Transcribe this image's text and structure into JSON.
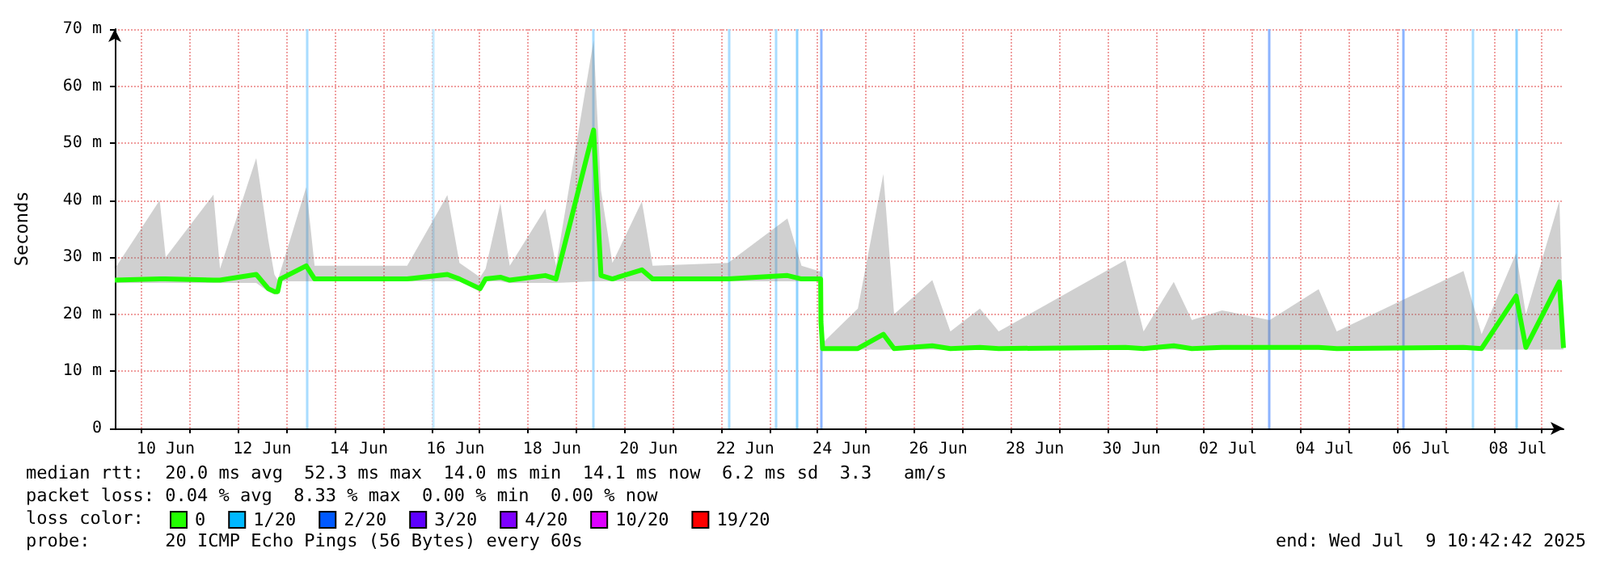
{
  "chart_data": {
    "type": "line",
    "ylabel": "Seconds",
    "legend_title": "loss color:",
    "legend": "bottom",
    "grid": true,
    "marker": "none",
    "line_style": "solid",
    "xlim": [
      "2025-06-09T10:42",
      "2025-07-09T10:42"
    ],
    "xticks": [
      {
        "value": "2025-06-10T12:00",
        "label": "10 Jun"
      },
      {
        "value": "2025-06-12T12:00",
        "label": "12 Jun"
      },
      {
        "value": "2025-06-14T12:00",
        "label": "14 Jun"
      },
      {
        "value": "2025-06-16T12:00",
        "label": "16 Jun"
      },
      {
        "value": "2025-06-18T12:00",
        "label": "18 Jun"
      },
      {
        "value": "2025-06-20T12:00",
        "label": "20 Jun"
      },
      {
        "value": "2025-06-22T12:00",
        "label": "22 Jun"
      },
      {
        "value": "2025-06-24T12:00",
        "label": "24 Jun"
      },
      {
        "value": "2025-06-26T12:00",
        "label": "26 Jun"
      },
      {
        "value": "2025-06-28T12:00",
        "label": "28 Jun"
      },
      {
        "value": "2025-06-30T12:00",
        "label": "30 Jun"
      },
      {
        "value": "2025-07-02T12:00",
        "label": "02 Jul"
      },
      {
        "value": "2025-07-04T12:00",
        "label": "04 Jul"
      },
      {
        "value": "2025-07-06T12:00",
        "label": "06 Jul"
      },
      {
        "value": "2025-07-08T12:00",
        "label": "08 Jul"
      },
      {
        "value": "2025-06-10",
        "label": null
      },
      {
        "value": "2025-06-11",
        "label": null
      },
      {
        "value": "2025-06-12",
        "label": null
      },
      {
        "value": "2025-06-13",
        "label": null
      },
      {
        "value": "2025-06-14",
        "label": null
      },
      {
        "value": "2025-06-15",
        "label": null
      },
      {
        "value": "2025-06-16",
        "label": null
      },
      {
        "value": "2025-06-17",
        "label": null
      },
      {
        "value": "2025-06-18",
        "label": null
      },
      {
        "value": "2025-06-19",
        "label": null
      },
      {
        "value": "2025-06-20",
        "label": null
      },
      {
        "value": "2025-06-21",
        "label": null
      },
      {
        "value": "2025-06-22",
        "label": null
      },
      {
        "value": "2025-06-23",
        "label": null
      },
      {
        "value": "2025-06-24",
        "label": null
      },
      {
        "value": "2025-06-25",
        "label": null
      },
      {
        "value": "2025-06-26",
        "label": null
      },
      {
        "value": "2025-06-27",
        "label": null
      },
      {
        "value": "2025-06-28",
        "label": null
      },
      {
        "value": "2025-06-29",
        "label": null
      },
      {
        "value": "2025-06-30",
        "label": null
      },
      {
        "value": "2025-07-01",
        "label": null
      },
      {
        "value": "2025-07-02",
        "label": null
      },
      {
        "value": "2025-07-03",
        "label": null
      },
      {
        "value": "2025-07-04",
        "label": null
      },
      {
        "value": "2025-07-05",
        "label": null
      },
      {
        "value": "2025-07-06",
        "label": null
      },
      {
        "value": "2025-07-07",
        "label": null
      },
      {
        "value": "2025-07-08",
        "label": null
      },
      {
        "value": "2025-07-09",
        "label": null
      }
    ],
    "ylim": [
      0,
      70
    ],
    "yticks": [
      0,
      {
        "value": 10,
        "label": "10 m"
      },
      {
        "value": 20,
        "label": "20 m"
      },
      {
        "value": 30,
        "label": "30 m"
      },
      {
        "value": 40,
        "label": "40 m"
      },
      {
        "value": 50,
        "label": "50 m"
      },
      {
        "value": 60,
        "label": "60 m"
      },
      {
        "value": 70,
        "label": "70 m"
      }
    ],
    "series": [
      {
        "name": "0",
        "color": "#22ff00",
        "x": [
          "2025-06-09T10:42",
          "2025-06-10T09:00",
          "2025-06-10T12:00",
          "2025-06-11T11:45",
          "2025-06-11T15:00",
          "2025-06-12T09:00",
          "2025-06-12T15:00",
          "2025-06-12T18:00",
          "2025-06-12T19:40",
          "2025-06-12T21:00",
          "2025-06-13T09:50",
          "2025-06-13T14:00",
          "2025-06-15T12:00",
          "2025-06-16T08:00",
          "2025-06-16T14:00",
          "2025-06-17T00:15",
          "2025-06-17T03:00",
          "2025-06-17T10:20",
          "2025-06-17T15:00",
          "2025-06-18T08:40",
          "2025-06-18T14:00",
          "2025-06-19T08:40",
          "2025-06-19T12:20",
          "2025-06-19T18:00",
          "2025-06-20T08:40",
          "2025-06-20T14:00",
          "2025-06-22T03:30",
          "2025-06-23T09:00",
          "2025-06-23T16:00",
          "2025-06-24T01:30",
          "2025-06-24T01:40",
          "2025-06-24T02:30",
          "2025-06-24T20:00",
          "2025-06-25T08:40",
          "2025-06-25T14:00",
          "2025-06-26T09:00",
          "2025-06-26T18:00",
          "2025-06-27T08:40",
          "2025-06-27T18:00",
          "2025-06-30T09:00",
          "2025-06-30T18:00",
          "2025-07-01T09:00",
          "2025-07-01T18:00",
          "2025-07-02T09:00",
          "2025-07-03T08:40",
          "2025-07-04T09:00",
          "2025-07-04T18:00",
          "2025-07-07T09:00",
          "2025-07-07T18:00",
          "2025-07-08T11:10",
          "2025-07-08T16:00",
          "2025-07-09T08:40",
          "2025-07-09T10:42"
        ],
        "values": [
          26.0,
          26.2,
          26.2,
          26.0,
          26.0,
          27.0,
          24.5,
          24.0,
          24.0,
          26.2,
          28.5,
          26.2,
          26.2,
          27.0,
          26.2,
          24.5,
          26.2,
          26.5,
          26.0,
          26.8,
          26.2,
          52.3,
          26.8,
          26.2,
          27.8,
          26.2,
          26.2,
          26.8,
          26.2,
          26.2,
          18.7,
          14.0,
          14.0,
          16.5,
          14.0,
          14.5,
          14.0,
          14.2,
          14.0,
          14.2,
          14.0,
          14.5,
          14.0,
          14.2,
          14.2,
          14.2,
          14.0,
          14.2,
          14.0,
          23.2,
          14.2,
          25.7,
          14.1
        ],
        "lower": [
          25.5,
          25.5,
          25.5,
          25.5,
          25.5,
          25.5,
          24.0,
          23.5,
          23.5,
          25.8,
          25.8,
          25.8,
          25.8,
          25.8,
          25.8,
          24.0,
          25.8,
          25.8,
          25.5,
          25.5,
          25.5,
          25.8,
          25.8,
          25.8,
          25.8,
          25.8,
          25.8,
          25.8,
          25.8,
          25.8,
          18.0,
          13.8,
          13.8,
          13.8,
          13.8,
          13.8,
          13.8,
          13.8,
          13.8,
          13.8,
          13.8,
          13.8,
          13.8,
          13.8,
          13.8,
          13.8,
          13.8,
          13.8,
          13.8,
          13.8,
          13.8,
          13.8,
          13.8
        ],
        "upper": [
          28.0,
          40.0,
          30.0,
          41.0,
          28.0,
          47.4,
          33.0,
          27.0,
          26.0,
          27.5,
          42.3,
          28.5,
          28.5,
          40.9,
          29.0,
          26.5,
          28.0,
          39.5,
          28.5,
          38.5,
          28.5,
          68.0,
          41.7,
          29.0,
          39.8,
          28.5,
          29.0,
          36.8,
          28.5,
          27.5,
          19.0,
          15.0,
          21.0,
          44.6,
          20.0,
          26.0,
          17.0,
          21.0,
          17.0,
          29.5,
          17.0,
          25.7,
          19.0,
          20.7,
          19.0,
          24.4,
          17.0,
          27.6,
          16.5,
          30.7,
          20.0,
          39.9,
          16.0
        ]
      },
      {
        "name": "1/20",
        "color": "#00b8ff"
      },
      {
        "name": "2/20",
        "color": "#0059ff"
      },
      {
        "name": "3/20",
        "color": "#5e00ff"
      },
      {
        "name": "4/20",
        "color": "#7e00ff"
      },
      {
        "name": "10/20",
        "color": "#dd00ff"
      },
      {
        "name": "19/20",
        "color": "#ff0000"
      }
    ],
    "ref_lines": [
      {
        "axis": "x",
        "value": "2025-06-13T09:50",
        "color": "#a8dcff"
      },
      {
        "axis": "x",
        "value": "2025-06-16T01:00",
        "color": "#c4e8ff"
      },
      {
        "axis": "x",
        "value": "2025-06-19T08:40",
        "color": "#a8dcff"
      },
      {
        "axis": "x",
        "value": "2025-06-22T03:30",
        "color": "#a8dcff"
      },
      {
        "axis": "x",
        "value": "2025-06-23T03:30",
        "color": "#a8dcff"
      },
      {
        "axis": "x",
        "value": "2025-06-23T14:00",
        "color": "#8cd2ff"
      },
      {
        "axis": "x",
        "value": "2025-06-24T01:40",
        "color": "#8cb4ff"
      },
      {
        "axis": "x",
        "value": "2025-07-03T08:10",
        "color": "#8cb4ff"
      },
      {
        "axis": "x",
        "value": "2025-07-06T03:20",
        "color": "#8cb4ff"
      },
      {
        "axis": "x",
        "value": "2025-07-07T13:40",
        "color": "#a8dcff"
      },
      {
        "axis": "x",
        "value": "2025-07-08T11:10",
        "color": "#8cd2ff"
      }
    ],
    "annotations": [
      "median rtt:  20.0 ms avg  52.3 ms max  14.0 ms min  14.1 ms now  6.2 ms sd  3.3   am/s",
      "packet loss: 0.04 % avg  8.33 % max  0.00 % min  0.00 % now",
      "probe:       20 ICMP Echo Pings (56 Bytes) every 60s",
      "end: Wed Jul  9 10:42:42 2025"
    ]
  }
}
